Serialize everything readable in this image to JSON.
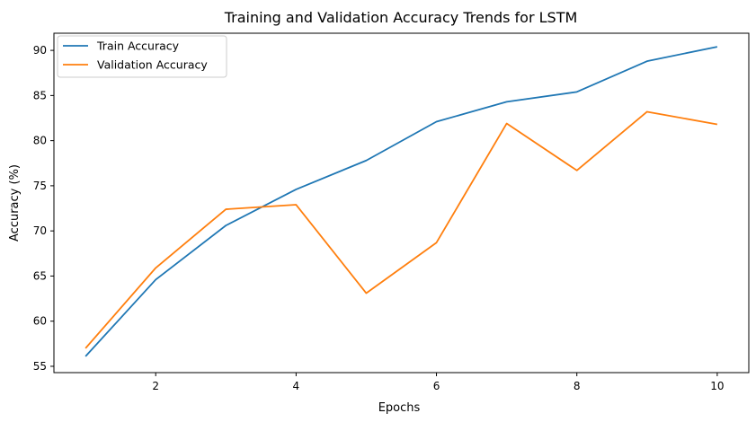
{
  "chart_data": {
    "type": "line",
    "title": "Training and Validation Accuracy Trends for LSTM",
    "xlabel": "Epochs",
    "ylabel": "Accuracy (%)",
    "x": [
      1,
      2,
      3,
      4,
      5,
      6,
      7,
      8,
      9,
      10
    ],
    "xlim": [
      0.55,
      10.45
    ],
    "ylim": [
      54.3,
      91.9
    ],
    "xticks": [
      2,
      4,
      6,
      8,
      10
    ],
    "yticks": [
      55,
      60,
      65,
      70,
      75,
      80,
      85,
      90
    ],
    "grid": false,
    "legend_position": "upper-left",
    "series": [
      {
        "name": "Train Accuracy",
        "color": "#1f77b4",
        "values": [
          56.1,
          64.6,
          70.6,
          74.6,
          77.8,
          82.1,
          84.3,
          85.4,
          88.8,
          90.4
        ]
      },
      {
        "name": "Validation Accuracy",
        "color": "#ff7f0e",
        "values": [
          57.0,
          65.9,
          72.4,
          72.9,
          63.1,
          68.7,
          81.9,
          76.7,
          83.2,
          81.8
        ]
      }
    ]
  }
}
